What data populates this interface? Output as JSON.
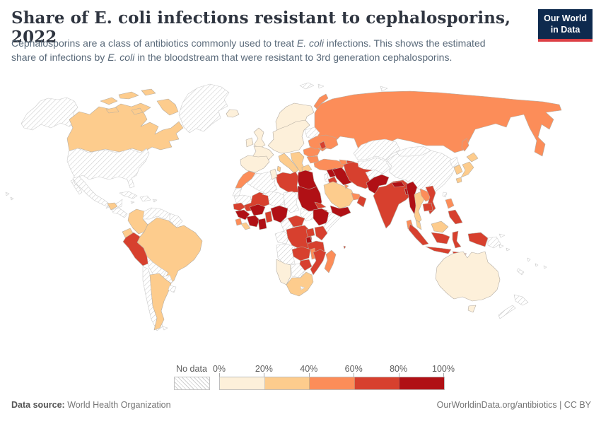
{
  "header": {
    "title": "Share of E. coli infections resistant to cephalosporins, 2022",
    "subtitle": {
      "line1": {
        "t1": "Cephalosporins are a class of antibiotics commonly used to treat ",
        "t2": "E. coli",
        "t3": " infections. This shows the estimated"
      },
      "line2": {
        "t1": "share of infections by ",
        "t2": "E. coli",
        "t3": " in the bloodstream that were resistant to 3rd generation cephalosporins."
      }
    },
    "logo": {
      "line1": "Our World",
      "line2": "in Data",
      "bg_color": "#0e2a4e",
      "accent_color": "#dc3f45"
    }
  },
  "legend": {
    "no_data_label": "No data",
    "tick_labels": [
      "0%",
      "20%",
      "40%",
      "60%",
      "80%",
      "100%"
    ],
    "bins": [
      {
        "id": "0-20",
        "color": "#fdf0da"
      },
      {
        "id": "20-40",
        "color": "#fdcc8d"
      },
      {
        "id": "40-60",
        "color": "#fc8d59"
      },
      {
        "id": "60-80",
        "color": "#d7402e"
      },
      {
        "id": "80-100",
        "color": "#b01015"
      }
    ]
  },
  "map": {
    "ocean_color": "#ffffff",
    "stroke": "#b5ada3",
    "no_data_stroke": "#cccccc",
    "hatch_color": "#cccccc"
  },
  "footer": {
    "datasource_label": "Data source:",
    "datasource_value": " World Health Organization",
    "credit": "OurWorldinData.org/antibiotics",
    "divider": " | ",
    "license": "CC BY"
  },
  "chart_data": {
    "type": "choropleth",
    "title": "Share of E. coli infections resistant to cephalosporins, 2022",
    "year": 2022,
    "unit": "%",
    "bin_labels": {
      "no-data": "No data",
      "0-20": "0-20%",
      "20-40": "20-40%",
      "40-60": "40-60%",
      "60-80": "60-80%",
      "80-100": "80-100%"
    },
    "countries": {
      "united-states": "no-data",
      "canada": "20-40",
      "greenland": "no-data",
      "iceland": "0-20",
      "mexico": "no-data",
      "guatemala-belize": "20-40",
      "central-america": "no-data",
      "cuba": "no-data",
      "hispaniola": "no-data",
      "jamaica": "no-data",
      "puerto-rico": "no-data",
      "trinidad-tobago": "20-40",
      "colombia": "20-40",
      "venezuela": "no-data",
      "guyanas": "no-data",
      "ecuador": "20-40",
      "peru": "60-80",
      "brazil": "20-40",
      "bolivia": "no-data",
      "paraguay": "no-data",
      "uruguay": "no-data",
      "chile": "no-data",
      "argentina": "20-40",
      "falkland-islands": "no-data",
      "norway-sweden-finland": "0-20",
      "denmark": "0-20",
      "united-kingdom": "0-20",
      "ireland": "0-20",
      "france": "0-20",
      "spain-portugal": "0-20",
      "central-europe": "0-20",
      "belarus": "no-data",
      "ukraine": "40-60",
      "moldova": "60-80",
      "romania": "40-60",
      "bulgaria": "40-60",
      "western-balkans": "20-40",
      "greece": "20-40",
      "italy": "20-40",
      "svalbard": "no-data",
      "arctic-islands": "no-data",
      "russia": "40-60",
      "turkey": "40-60",
      "georgia-armenia": "40-60",
      "azerbaijan": "60-80",
      "syria": "80-100",
      "lebanon-israel": "no-data",
      "jordan": "60-80",
      "iraq": "80-100",
      "iran": "60-80",
      "saudi-arabia": "20-40",
      "kuwait": "40-60",
      "qatar-uae": "40-60",
      "oman": "60-80",
      "yemen": "80-100",
      "kazakhstan": "no-data",
      "central-asia": "no-data",
      "afghanistan": "no-data",
      "pakistan": "80-100",
      "india": "60-80",
      "nepal": "80-100",
      "bangladesh": "80-100",
      "sri-lanka": "40-60",
      "china": "no-data",
      "mongolia": "no-data",
      "north-korea": "no-data",
      "south-korea": "20-40",
      "japan": "20-40",
      "taiwan": "no-data",
      "myanmar": "80-100",
      "thailand": "20-40",
      "laos": "40-60",
      "vietnam": "60-80",
      "cambodia": "60-80",
      "malaysia": "20-40",
      "indonesia": "60-80",
      "philippines-north": "40-60",
      "philippines-south": "60-80",
      "papua-new-guinea": "no-data",
      "solomon-islands": "no-data",
      "vanuatu-fiji": "no-data",
      "new-caledonia": "no-data",
      "australia": "0-20",
      "new-zealand": "no-data",
      "morocco": "40-60",
      "western-sahara": "no-data",
      "algeria": "no-data",
      "tunisia": "0-20",
      "libya": "60-80",
      "egypt": "80-100",
      "mauritania": "no-data",
      "mali": "60-80",
      "niger": "no-data",
      "chad": "no-data",
      "sudan": "80-100",
      "south-sudan": "no-data",
      "eritrea": "60-80",
      "djibouti": "60-80",
      "ethiopia": "80-100",
      "somalia": "no-data",
      "senegal": "60-80",
      "guinea": "80-100",
      "sierra-leone": "40-60",
      "liberia": "20-40",
      "cote-divoire": "80-100",
      "ghana": "80-100",
      "burkina-faso": "80-100",
      "togo-benin": "60-80",
      "nigeria": "80-100",
      "cameroon": "no-data",
      "central-african-republic": "60-80",
      "gabon-congo": "no-data",
      "dr-congo": "60-80",
      "uganda": "60-80",
      "kenya": "60-80",
      "rwanda-burundi": "80-100",
      "tanzania": "60-80",
      "angola": "no-data",
      "zambia": "60-80",
      "malawi": "40-60",
      "mozambique": "60-80",
      "zimbabwe": "60-80",
      "botswana": "no-data",
      "namibia": "0-20",
      "south-africa": "20-40",
      "lesotho": "no-data",
      "madagascar": "40-60",
      "comoros": "60-80"
    }
  }
}
